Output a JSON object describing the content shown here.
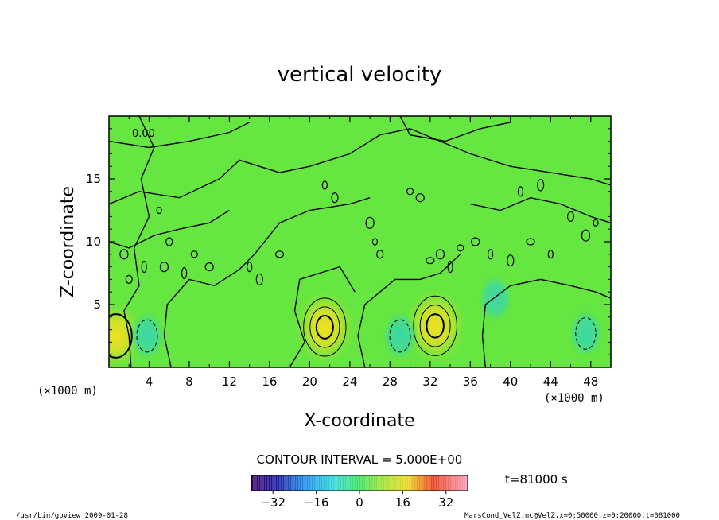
{
  "chart_data": {
    "type": "heatmap",
    "title": "vertical velocity",
    "xlabel": "X-coordinate",
    "ylabel": "Z-coordinate",
    "x_unit_left": "(×1000 m)",
    "x_unit_right": "(×1000 m)",
    "xlim": [
      0,
      50
    ],
    "ylim": [
      0,
      20
    ],
    "x_ticks": [
      "4",
      "8",
      "12",
      "16",
      "20",
      "24",
      "28",
      "32",
      "36",
      "40",
      "44",
      "48"
    ],
    "y_ticks": [
      "5",
      "10",
      "15"
    ],
    "contour_zero_label": "0.00",
    "contour_interval": "CONTOUR INTERVAL = 5.000E+00",
    "colorbar_ticks": [
      "−32",
      "−16",
      "0",
      "16",
      "32"
    ],
    "colorbar_range": [
      -40,
      40
    ],
    "time_label": "t=81000 s",
    "grid": false,
    "colormap": "rainbow (purple-blue-cyan-green-yellow-red-pink)",
    "features": [
      {
        "kind": "updraft",
        "x": 21.5,
        "z": 3.2,
        "peak": 16
      },
      {
        "kind": "updraft",
        "x": 32.5,
        "z": 3.3,
        "peak": 18
      },
      {
        "kind": "updraft",
        "x": 0.7,
        "z": 2.5,
        "peak": 8
      },
      {
        "kind": "downdraft",
        "x": 3.8,
        "z": 2.5,
        "peak": -6
      },
      {
        "kind": "downdraft",
        "x": 29.0,
        "z": 2.5,
        "peak": -6
      },
      {
        "kind": "downdraft",
        "x": 47.5,
        "z": 2.7,
        "peak": -5
      },
      {
        "kind": "downdraft",
        "x": 38.5,
        "z": 5.5,
        "peak": -4
      }
    ]
  },
  "footer": {
    "left": "/usr/bin/gpview   2009-01-28",
    "right": "MarsCond_VelZ.nc@VelZ,x=0:50000,z=0:20000,t=081000"
  }
}
